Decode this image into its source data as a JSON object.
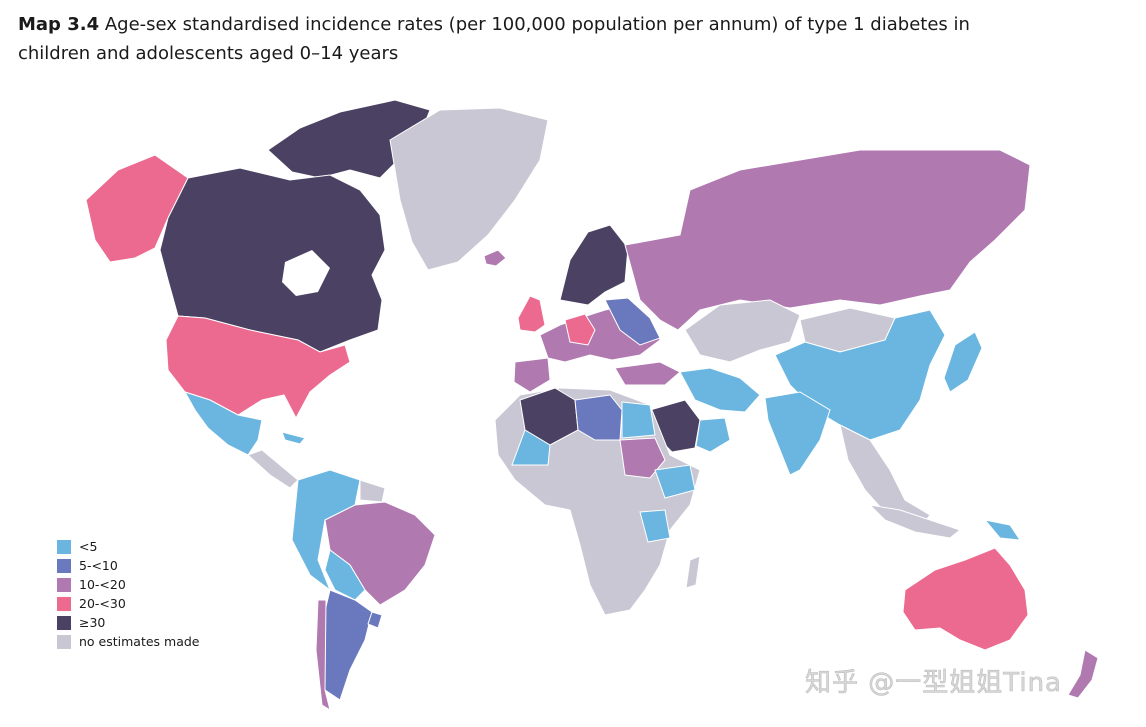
{
  "title": {
    "label": "Map 3.4",
    "text": "Age-sex standardised incidence rates (per 100,000 population per annum) of type 1 diabetes in children and adolescents aged 0–14 years"
  },
  "legend": [
    {
      "key": "lt5",
      "label": "<5",
      "color": "#6bb6e0"
    },
    {
      "key": "5to10",
      "label": "5-<10",
      "color": "#6a78be"
    },
    {
      "key": "10to20",
      "label": "10-<20",
      "color": "#b079b0"
    },
    {
      "key": "20to30",
      "label": "20-<30",
      "color": "#ec6a8f"
    },
    {
      "key": "ge30",
      "label": "≥30",
      "color": "#4b4263"
    },
    {
      "key": "none",
      "label": "no estimates made",
      "color": "#c9c7d3"
    }
  ],
  "watermark": "知乎 @一型姐姐Tina"
}
